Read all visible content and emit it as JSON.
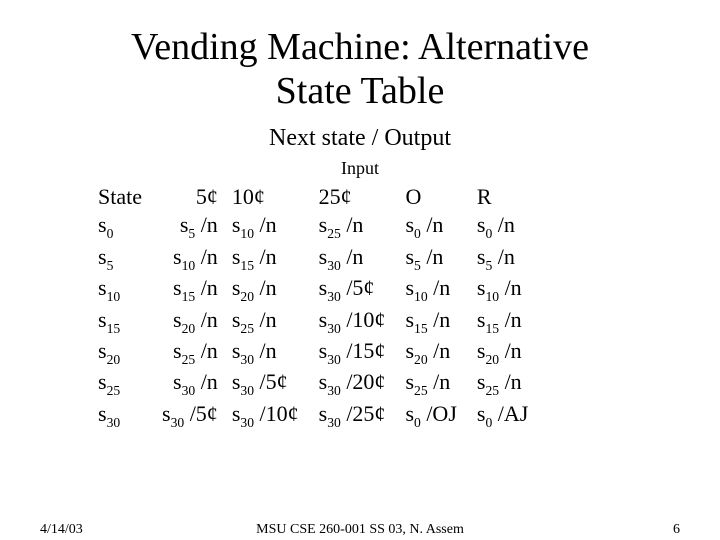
{
  "title_line1": "Vending Machine: Alternative",
  "title_line2": "State Table",
  "subtitle": "Next state / Output",
  "input_label": "Input",
  "table": {
    "columns": [
      "State",
      "5¢",
      "10¢",
      "25¢",
      "O",
      "R"
    ],
    "rows": [
      {
        "state": {
          "base": "s",
          "sub": "0"
        },
        "c5": {
          "base": "s",
          "sub": "5",
          "out": "/n"
        },
        "c10": {
          "base": "s",
          "sub": "10",
          "out": "/n"
        },
        "c25": {
          "base": "s",
          "sub": "25",
          "out": "/n"
        },
        "o": {
          "base": "s",
          "sub": "0",
          "out": "/n"
        },
        "r": {
          "base": "s",
          "sub": "0",
          "out": "/n"
        }
      },
      {
        "state": {
          "base": "s",
          "sub": "5"
        },
        "c5": {
          "base": "s",
          "sub": "10",
          "out": "/n"
        },
        "c10": {
          "base": "s",
          "sub": "15",
          "out": "/n"
        },
        "c25": {
          "base": "s",
          "sub": "30",
          "out": "/n"
        },
        "o": {
          "base": "s",
          "sub": "5",
          "out": "/n"
        },
        "r": {
          "base": "s",
          "sub": "5",
          "out": "/n"
        }
      },
      {
        "state": {
          "base": "s",
          "sub": "10"
        },
        "c5": {
          "base": "s",
          "sub": "15",
          "out": "/n"
        },
        "c10": {
          "base": "s",
          "sub": "20",
          "out": "/n"
        },
        "c25": {
          "base": "s",
          "sub": "30",
          "out": "/5¢"
        },
        "o": {
          "base": "s",
          "sub": "10",
          "out": "/n"
        },
        "r": {
          "base": "s",
          "sub": "10",
          "out": "/n"
        }
      },
      {
        "state": {
          "base": "s",
          "sub": "15"
        },
        "c5": {
          "base": "s",
          "sub": "20",
          "out": "/n"
        },
        "c10": {
          "base": "s",
          "sub": "25",
          "out": "/n"
        },
        "c25": {
          "base": "s",
          "sub": "30",
          "out": "/10¢"
        },
        "o": {
          "base": "s",
          "sub": "15",
          "out": "/n"
        },
        "r": {
          "base": "s",
          "sub": "15",
          "out": "/n"
        }
      },
      {
        "state": {
          "base": "s",
          "sub": "20"
        },
        "c5": {
          "base": "s",
          "sub": "25",
          "out": "/n"
        },
        "c10": {
          "base": "s",
          "sub": "30",
          "out": "/n"
        },
        "c25": {
          "base": "s",
          "sub": "30",
          "out": "/15¢"
        },
        "o": {
          "base": "s",
          "sub": "20",
          "out": "/n"
        },
        "r": {
          "base": "s",
          "sub": "20",
          "out": "/n"
        }
      },
      {
        "state": {
          "base": "s",
          "sub": "25"
        },
        "c5": {
          "base": "s",
          "sub": "30",
          "out": "/n"
        },
        "c10": {
          "base": "s",
          "sub": "30",
          "out": "/5¢"
        },
        "c25": {
          "base": "s",
          "sub": "30",
          "out": "/20¢"
        },
        "o": {
          "base": "s",
          "sub": "25",
          "out": "/n"
        },
        "r": {
          "base": "s",
          "sub": "25",
          "out": "/n"
        }
      },
      {
        "state": {
          "base": "s",
          "sub": "30"
        },
        "c5": {
          "base": "s",
          "sub": "30",
          "out": "/5¢"
        },
        "c10": {
          "base": "s",
          "sub": "30",
          "out": "/10¢"
        },
        "c25": {
          "base": "s",
          "sub": "30",
          "out": "/25¢"
        },
        "o": {
          "base": "s",
          "sub": "0",
          "out": "/OJ"
        },
        "r": {
          "base": "s",
          "sub": "0",
          "out": "/AJ"
        }
      }
    ]
  },
  "footer": {
    "date": "4/14/03",
    "center": "MSU CSE 260-001 SS 03, N. Assem",
    "page": "6"
  },
  "style": {
    "background": "#ffffff",
    "text_color": "#000000",
    "title_fontsize": 38,
    "subtitle_fontsize": 24,
    "input_label_fontsize": 18,
    "table_fontsize": 22,
    "footer_fontsize": 14,
    "font_family": "Times New Roman"
  }
}
